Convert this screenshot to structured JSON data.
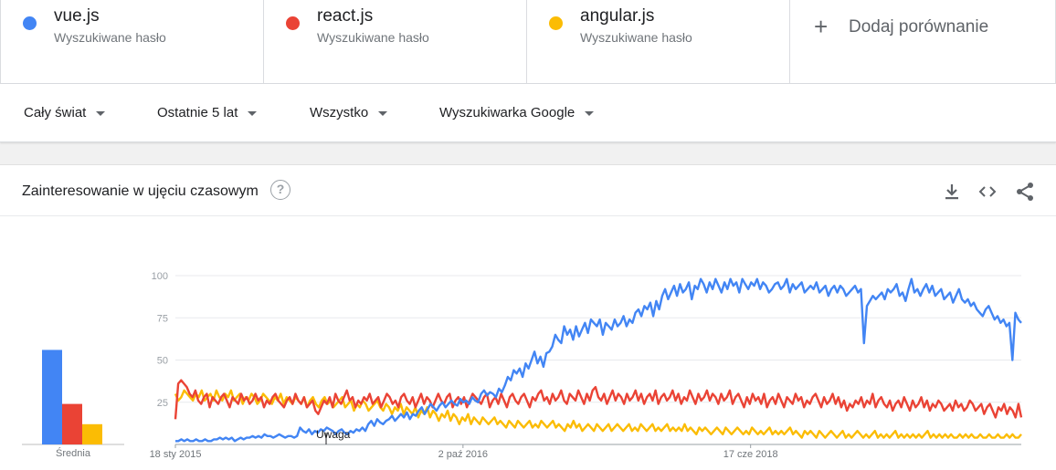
{
  "terms": [
    {
      "name": "vue.js",
      "sub": "Wyszukiwane hasło",
      "color": "#4285f4"
    },
    {
      "name": "react.js",
      "sub": "Wyszukiwane hasło",
      "color": "#ea4335"
    },
    {
      "name": "angular.js",
      "sub": "Wyszukiwane hasło",
      "color": "#fbbc04"
    }
  ],
  "add_comparison": {
    "label": "Dodaj porównanie",
    "icon": "plus-icon"
  },
  "filters": {
    "region": "Cały świat",
    "time": "Ostatnie 5 lat",
    "category": "Wszystko",
    "source": "Wyszukiwarka Google"
  },
  "card": {
    "title": "Zainteresowanie w ujęciu czasowym",
    "help_icon": "?",
    "actions": [
      "download-icon",
      "embed-icon",
      "share-icon"
    ]
  },
  "chart_data": [
    {
      "type": "bar",
      "xlabel": "Średnia",
      "categories": [
        "vue.js",
        "react.js",
        "angular.js"
      ],
      "values": [
        56,
        24,
        12
      ],
      "colors": [
        "#4285f4",
        "#ea4335",
        "#fbbc04"
      ],
      "ylim": [
        0,
        100
      ]
    },
    {
      "type": "line",
      "x_tick_labels": [
        "18 sty 2015",
        "2 paź 2016",
        "17 cze 2018"
      ],
      "y_tick_labels": [
        "100",
        "75",
        "50",
        "25"
      ],
      "ylim": [
        0,
        100
      ],
      "grid": true,
      "annotation": "Uwaga",
      "series": [
        {
          "name": "vue.js",
          "color": "#4285f4",
          "values": [
            2,
            2,
            3,
            2,
            3,
            2,
            2,
            3,
            2,
            2,
            3,
            2,
            2,
            3,
            3,
            4,
            3,
            4,
            3,
            4,
            2,
            3,
            4,
            3,
            4,
            4,
            5,
            4,
            5,
            4,
            6,
            5,
            5,
            4,
            5,
            6,
            5,
            4,
            5,
            5,
            4,
            5,
            10,
            8,
            7,
            9,
            6,
            8,
            7,
            9,
            8,
            10,
            9,
            8,
            6,
            8,
            9,
            7,
            6,
            8,
            7,
            9,
            8,
            10,
            8,
            12,
            14,
            11,
            15,
            13,
            12,
            14,
            15,
            17,
            14,
            16,
            18,
            16,
            19,
            15,
            18,
            17,
            20,
            22,
            18,
            21,
            24,
            22,
            20,
            23,
            25,
            22,
            24,
            26,
            24,
            23,
            27,
            25,
            26,
            24,
            28,
            26,
            25,
            30,
            32,
            29,
            31,
            30,
            28,
            33,
            31,
            35,
            40,
            38,
            44,
            42,
            45,
            40,
            48,
            45,
            50,
            55,
            48,
            52,
            46,
            54,
            55,
            58,
            65,
            62,
            60,
            70,
            65,
            68,
            62,
            70,
            64,
            68,
            72,
            66,
            74,
            72,
            70,
            74,
            65,
            72,
            70,
            68,
            74,
            70,
            72,
            76,
            70,
            74,
            72,
            78,
            80,
            76,
            82,
            80,
            84,
            76,
            85,
            80,
            88,
            92,
            86,
            90,
            94,
            88,
            95,
            90,
            92,
            96,
            86,
            94,
            92,
            98,
            95,
            90,
            96,
            92,
            98,
            94,
            90,
            96,
            92,
            98,
            94,
            96,
            90,
            98,
            95,
            92,
            96,
            94,
            98,
            92,
            96,
            94,
            90,
            92,
            95,
            96,
            92,
            94,
            98,
            90,
            95,
            92,
            94,
            96,
            90,
            92,
            94,
            92,
            96,
            90,
            92,
            94,
            88,
            92,
            94,
            90,
            94,
            92,
            88,
            90,
            92,
            94,
            90,
            92,
            60,
            82,
            85,
            88,
            86,
            88,
            90,
            86,
            92,
            90,
            92,
            95,
            88,
            90,
            85,
            92,
            98,
            90,
            92,
            88,
            92,
            95,
            90,
            94,
            88,
            90,
            92,
            86,
            88,
            90,
            84,
            88,
            92,
            86,
            84,
            86,
            82,
            84,
            80,
            78,
            76,
            80,
            82,
            78,
            74,
            76,
            72,
            74,
            70,
            72,
            50,
            78,
            74,
            72
          ]
        },
        {
          "name": "react.js",
          "color": "#ea4335",
          "values": [
            15,
            36,
            38,
            36,
            34,
            30,
            28,
            32,
            26,
            24,
            28,
            30,
            22,
            28,
            26,
            24,
            28,
            30,
            26,
            22,
            28,
            26,
            24,
            30,
            26,
            28,
            24,
            26,
            30,
            26,
            28,
            22,
            26,
            24,
            28,
            30,
            26,
            24,
            22,
            26,
            28,
            24,
            30,
            26,
            24,
            28,
            22,
            24,
            26,
            20,
            18,
            22,
            26,
            24,
            28,
            22,
            30,
            26,
            24,
            28,
            32,
            26,
            28,
            22,
            26,
            24,
            28,
            26,
            30,
            24,
            26,
            28,
            22,
            26,
            30,
            28,
            24,
            26,
            22,
            28,
            30,
            26,
            24,
            28,
            22,
            26,
            30,
            24,
            28,
            26,
            22,
            26,
            30,
            26,
            24,
            28,
            30,
            22,
            26,
            28,
            24,
            28,
            22,
            26,
            30,
            28,
            26,
            24,
            28,
            30,
            22,
            26,
            28,
            24,
            30,
            26,
            22,
            28,
            30,
            26,
            24,
            28,
            30,
            26,
            22,
            28,
            26,
            30,
            32,
            26,
            28,
            24,
            30,
            26,
            28,
            32,
            26,
            24,
            30,
            28,
            26,
            32,
            28,
            24,
            30,
            26,
            32,
            34,
            28,
            26,
            30,
            24,
            28,
            32,
            26,
            30,
            28,
            24,
            30,
            26,
            28,
            32,
            26,
            30,
            24,
            28,
            30,
            26,
            32,
            24,
            28,
            30,
            26,
            28,
            32,
            26,
            30,
            24,
            28,
            26,
            32,
            28,
            24,
            30,
            26,
            28,
            32,
            26,
            30,
            28,
            24,
            30,
            26,
            28,
            32,
            24,
            28,
            30,
            26,
            22,
            28,
            24,
            30,
            26,
            28,
            24,
            30,
            22,
            26,
            28,
            24,
            30,
            26,
            22,
            28,
            26,
            24,
            30,
            26,
            28,
            22,
            26,
            24,
            28,
            30,
            26,
            22,
            28,
            24,
            26,
            30,
            24,
            28,
            22,
            26,
            20,
            24,
            22,
            26,
            24,
            28,
            22,
            26,
            24,
            30,
            22,
            26,
            28,
            24,
            22,
            26,
            20,
            24,
            26,
            22,
            28,
            24,
            20,
            26,
            22,
            24,
            28,
            22,
            26,
            20,
            24,
            22,
            26,
            24,
            20,
            22,
            24,
            20,
            26,
            22,
            24,
            20,
            22,
            26,
            24,
            20,
            22,
            24,
            18,
            22,
            24,
            20,
            16,
            22,
            20,
            24,
            18,
            22,
            20,
            16,
            24,
            16
          ]
        },
        {
          "name": "angular.js",
          "color": "#fbbc04",
          "values": [
            30,
            26,
            28,
            32,
            30,
            28,
            26,
            30,
            28,
            32,
            26,
            28,
            30,
            26,
            32,
            28,
            26,
            30,
            28,
            32,
            26,
            28,
            30,
            24,
            28,
            26,
            30,
            28,
            24,
            26,
            30,
            28,
            26,
            24,
            28,
            26,
            30,
            24,
            28,
            26,
            24,
            28,
            26,
            24,
            28,
            22,
            26,
            28,
            24,
            22,
            26,
            28,
            24,
            26,
            22,
            24,
            26,
            28,
            22,
            24,
            26,
            20,
            24,
            22,
            26,
            24,
            20,
            22,
            24,
            26,
            22,
            20,
            24,
            22,
            18,
            22,
            20,
            24,
            18,
            22,
            20,
            18,
            22,
            16,
            20,
            18,
            22,
            16,
            20,
            18,
            14,
            18,
            16,
            20,
            14,
            18,
            16,
            12,
            16,
            14,
            18,
            12,
            16,
            14,
            12,
            16,
            14,
            12,
            14,
            16,
            12,
            14,
            12,
            10,
            14,
            12,
            10,
            14,
            12,
            10,
            12,
            14,
            10,
            12,
            10,
            14,
            12,
            10,
            12,
            14,
            10,
            12,
            10,
            8,
            12,
            10,
            14,
            10,
            12,
            8,
            10,
            12,
            10,
            8,
            12,
            10,
            8,
            10,
            12,
            8,
            10,
            12,
            10,
            8,
            10,
            12,
            8,
            10,
            8,
            12,
            10,
            8,
            10,
            12,
            8,
            10,
            8,
            10,
            12,
            8,
            10,
            8,
            10,
            8,
            12,
            8,
            10,
            8,
            6,
            10,
            8,
            10,
            8,
            6,
            8,
            10,
            8,
            6,
            10,
            8,
            6,
            8,
            10,
            8,
            6,
            8,
            6,
            10,
            8,
            6,
            8,
            6,
            8,
            10,
            6,
            8,
            6,
            8,
            6,
            8,
            10,
            6,
            8,
            6,
            4,
            8,
            6,
            8,
            6,
            4,
            8,
            6,
            4,
            6,
            8,
            6,
            4,
            6,
            8,
            4,
            6,
            4,
            6,
            8,
            6,
            4,
            6,
            4,
            6,
            8,
            4,
            6,
            4,
            6,
            4,
            6,
            8,
            4,
            6,
            4,
            6,
            4,
            6,
            4,
            6,
            4,
            6,
            8,
            4,
            6,
            4,
            6,
            4,
            6,
            4,
            6,
            4,
            4,
            6,
            4,
            6,
            4,
            6,
            4,
            4,
            6,
            4,
            4,
            6,
            4,
            4,
            6,
            4,
            4,
            6,
            4,
            6,
            4,
            4,
            6
          ]
        }
      ]
    }
  ]
}
